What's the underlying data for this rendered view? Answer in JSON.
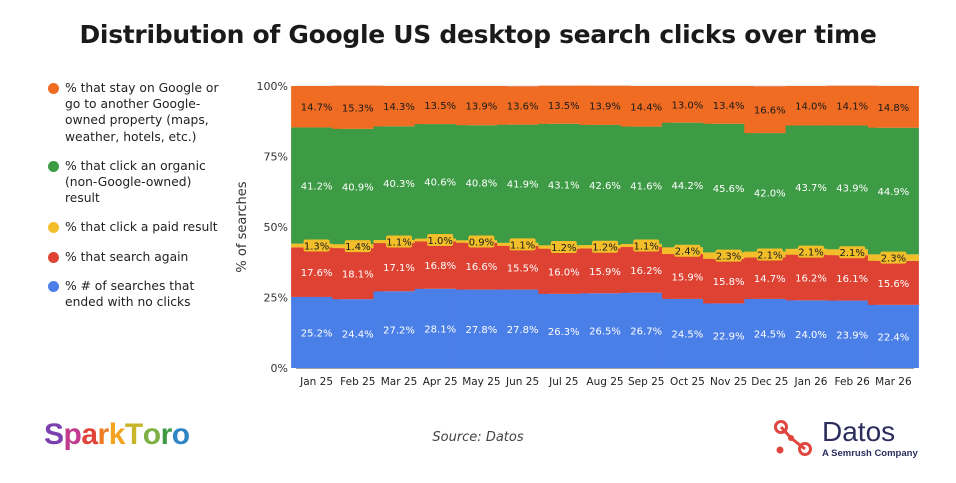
{
  "title": "Distribution of Google US desktop search clicks over time",
  "source": "Source: Datos",
  "logos": {
    "sparktoro": "SparkToro",
    "datos_name": "Datos",
    "datos_tagline": "A Semrush Company"
  },
  "colors": {
    "stay_on_google": "#ef6c22",
    "organic": "#3e9b45",
    "paid": "#f2bf2a",
    "search_again": "#de4232",
    "no_clicks": "#4b7fe8"
  },
  "chart_data": {
    "type": "bar",
    "stacked": true,
    "ylabel": "% of searches",
    "xlabel": "",
    "ylim": [
      0,
      100
    ],
    "yticks": [
      "0%",
      "25%",
      "50%",
      "75%",
      "100%"
    ],
    "grid": true,
    "legend_position": "left",
    "categories": [
      "Jan 25",
      "Feb 25",
      "Mar 25",
      "Apr 25",
      "May 25",
      "Jun 25",
      "Jul 25",
      "Aug 25",
      "Sep 25",
      "Oct 25",
      "Nov 25",
      "Dec 25",
      "Jan 26",
      "Feb 26",
      "Mar 26"
    ],
    "series": [
      {
        "key": "no_clicks",
        "name": "% # of searches that ended with no clicks",
        "color": "#4b7fe8",
        "values": [
          25.2,
          24.4,
          27.2,
          28.1,
          27.8,
          27.8,
          26.3,
          26.5,
          26.7,
          24.5,
          22.9,
          24.5,
          24.0,
          23.9,
          22.4
        ],
        "labels": [
          "25.2%",
          "24.4%",
          "27.2%",
          "28.1%",
          "27.8%",
          "27.8%",
          "26.3%",
          "26.5%",
          "26.7%",
          "24.5%",
          "22.9%",
          "24.5%",
          "24.0%",
          "23.9%",
          "22.4%"
        ]
      },
      {
        "key": "search_again",
        "name": "% that search again",
        "color": "#de4232",
        "values": [
          17.6,
          18.1,
          17.1,
          16.8,
          16.6,
          15.5,
          16.0,
          15.9,
          16.2,
          15.9,
          15.8,
          14.7,
          16.2,
          16.1,
          15.6
        ],
        "labels": [
          "17.6%",
          "18.1%",
          "17.1%",
          "16.8%",
          "16.6%",
          "15.5%",
          "16.0%",
          "15.9%",
          "16.2%",
          "15.9%",
          "15.8%",
          "14.7%",
          "16.2%",
          "16.1%",
          "15.6%"
        ]
      },
      {
        "key": "paid",
        "name": "% that click a paid result",
        "color": "#f2bf2a",
        "values": [
          1.3,
          1.4,
          1.1,
          1.0,
          0.9,
          1.1,
          1.2,
          1.2,
          1.1,
          2.4,
          2.3,
          2.1,
          2.1,
          2.1,
          2.3
        ],
        "labels": [
          "1.3%",
          "1.4%",
          "1.1%",
          "1.0%",
          "0.9%",
          "1.1%",
          "1.2%",
          "1.2%",
          "1.1%",
          "2.4%",
          "2.3%",
          "2.1%",
          "2.1%",
          "2.1%",
          "2.3%"
        ]
      },
      {
        "key": "organic",
        "name": "% that click an organic (non-Google-owned) result",
        "color": "#3e9b45",
        "values": [
          41.2,
          40.9,
          40.3,
          40.6,
          40.8,
          41.9,
          43.1,
          42.6,
          41.6,
          44.2,
          45.6,
          42.0,
          43.7,
          43.9,
          44.9
        ],
        "labels": [
          "41.2%",
          "40.9%",
          "40.3%",
          "40.6%",
          "40.8%",
          "41.9%",
          "43.1%",
          "42.6%",
          "41.6%",
          "44.2%",
          "45.6%",
          "42.0%",
          "43.7%",
          "43.9%",
          "44.9%"
        ]
      },
      {
        "key": "stay_on_google",
        "name": "% that stay on Google or go to another Google-owned property (maps, weather, hotels, etc.)",
        "color": "#ef6c22",
        "values": [
          14.7,
          15.3,
          14.3,
          13.5,
          13.9,
          13.6,
          13.5,
          13.9,
          14.4,
          13.0,
          13.4,
          16.6,
          14.0,
          14.1,
          14.8
        ],
        "labels": [
          "14.7%",
          "15.3%",
          "14.3%",
          "13.5%",
          "13.9%",
          "13.6%",
          "13.5%",
          "13.9%",
          "14.4%",
          "13.0%",
          "13.4%",
          "16.6%",
          "14.0%",
          "14.1%",
          "14.8%"
        ]
      }
    ],
    "legend_order": [
      "stay_on_google",
      "organic",
      "paid",
      "search_again",
      "no_clicks"
    ]
  }
}
